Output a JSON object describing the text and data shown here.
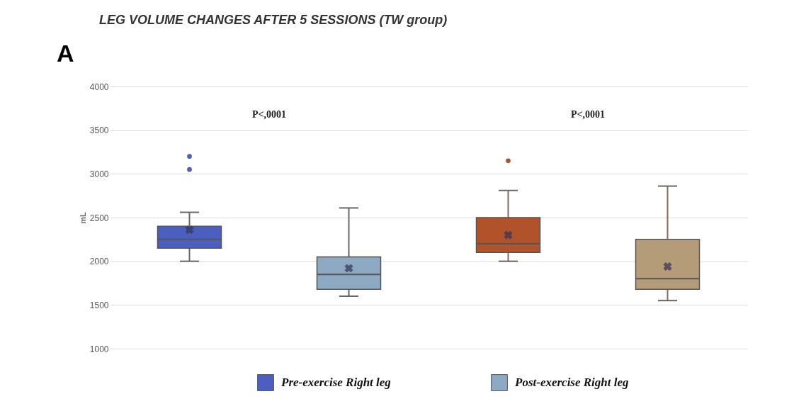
{
  "chart_data": {
    "type": "box",
    "title": "LEG VOLUME CHANGES AFTER 5 SESSIONS (TW group)",
    "ylabel": "mL",
    "categories": [
      null,
      null,
      null,
      null
    ],
    "series": [
      {
        "name": "Pre-exercise  Right leg",
        "color": "#4a5fbf",
        "boxes": [
          {
            "low": 2000,
            "q1": 2150,
            "median": 2250,
            "q3": 2400,
            "high": 2560,
            "mean": 2360,
            "outliers": [
              3050,
              3200
            ]
          },
          null,
          null,
          null
        ]
      },
      {
        "name": "Post-exercise  Right leg",
        "color": "#8ea9c4",
        "boxes": [
          null,
          {
            "low": 1600,
            "q1": 1680,
            "median": 1850,
            "q3": 2050,
            "high": 2610,
            "mean": 1920
          },
          null,
          null
        ]
      },
      {
        "color": "#b0532a",
        "boxes": [
          null,
          null,
          {
            "low": 2000,
            "q1": 2100,
            "median": 2200,
            "q3": 2500,
            "high": 2810,
            "mean": 2300,
            "outliers": [
              3150
            ]
          },
          null
        ]
      },
      {
        "color": "#b49c78",
        "boxes": [
          null,
          null,
          null,
          {
            "low": 1550,
            "q1": 1680,
            "median": 1800,
            "q3": 2250,
            "high": 2860,
            "mean": 1940
          }
        ]
      }
    ],
    "ylim": [
      1000,
      4000
    ],
    "yticks": [
      1000,
      1500,
      2000,
      2500,
      3000,
      3500,
      4000
    ],
    "grid": "y",
    "legend": "bottom",
    "tick_labels": "y",
    "annotations": [
      "P<,0001",
      "P<,0001",
      "A"
    ]
  }
}
